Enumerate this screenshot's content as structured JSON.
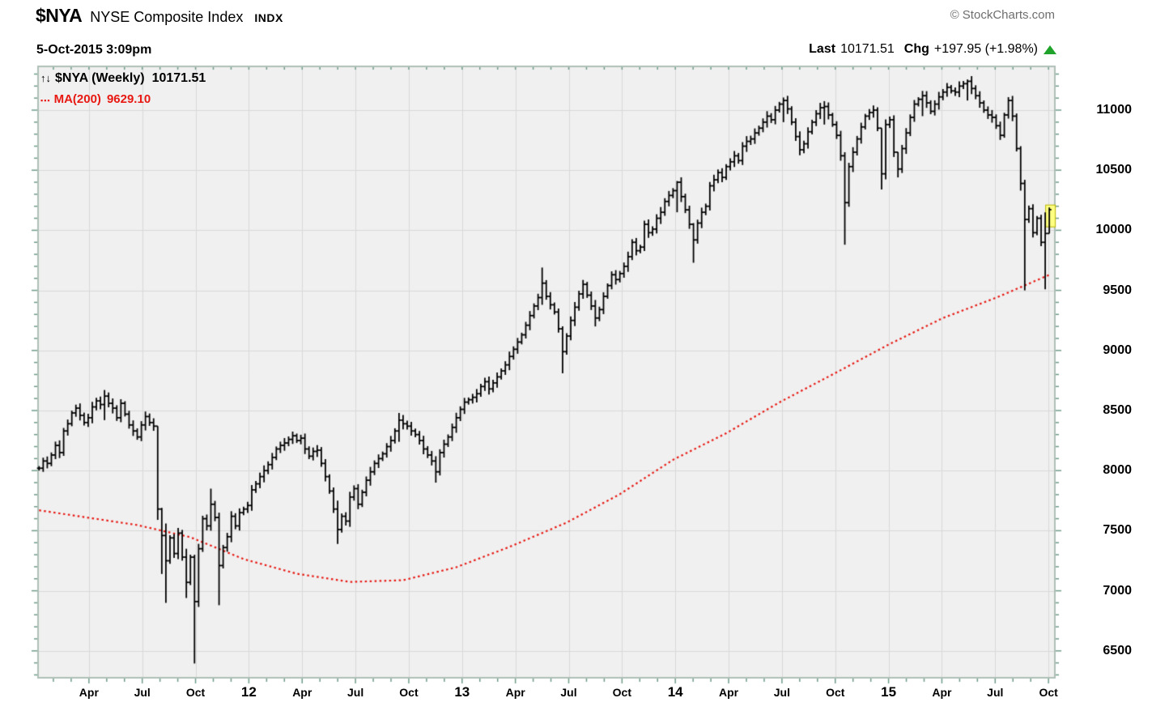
{
  "header": {
    "symbol": "$NYA",
    "name": "NYSE Composite Index",
    "exchange": "INDX",
    "datetime": "5-Oct-2015 3:09pm",
    "copyright": "© StockCharts.com",
    "last_label": "Last",
    "last_value": "10171.51",
    "chg_label": "Chg",
    "chg_value": "+197.95 (+1.98%)",
    "direction_icon": "up-triangle"
  },
  "legend": {
    "series_icon": "↑↓",
    "series_label": "$NYA (Weekly)",
    "series_value": "10171.51",
    "ma_swatch": "▪▪▪",
    "ma_label": "MA(200)",
    "ma_value": "9629.10"
  },
  "colors": {
    "bar": "#000000",
    "ma_line": "#e81812",
    "grid": "#d9d9d9",
    "plot_bg": "#f0f0f0",
    "border": "#aebfb7",
    "tick": "#6f9b88",
    "up_green": "#1fa32b",
    "marker_yellow": "#ffff82",
    "marker_edge": "#b8b400",
    "copyright_gray": "#6e6e6e"
  },
  "chart_data": {
    "type": "bar",
    "subtype": "weekly OHLC bars with 200-period moving average",
    "title": "$NYA (Weekly)",
    "symbol": "$NYA",
    "interval": "weekly",
    "start_date": "2011-01-07",
    "end_date": "2015-10-05",
    "last": 10171.51,
    "change": 197.95,
    "change_pct": 1.98,
    "ma200_last": 9629.1,
    "grid": true,
    "y_axis": {
      "side": "right",
      "min": 6280,
      "max": 11360,
      "grid_step": 500,
      "minor_tick_step": 100,
      "tick_values": [
        11000,
        10500,
        10000,
        9500,
        9000,
        8500,
        8000,
        7500,
        7000,
        6500
      ]
    },
    "x_axis": {
      "unit": "months since Jan 2011",
      "gridlines_every": "quarter",
      "tick_labels": [
        {
          "label": "Apr",
          "month": 3,
          "year": false
        },
        {
          "label": "Jul",
          "month": 6,
          "year": false
        },
        {
          "label": "Oct",
          "month": 9,
          "year": false
        },
        {
          "label": "12",
          "month": 12,
          "year": true
        },
        {
          "label": "Apr",
          "month": 15,
          "year": false
        },
        {
          "label": "Jul",
          "month": 18,
          "year": false
        },
        {
          "label": "Oct",
          "month": 21,
          "year": false
        },
        {
          "label": "13",
          "month": 24,
          "year": true
        },
        {
          "label": "Apr",
          "month": 27,
          "year": false
        },
        {
          "label": "Jul",
          "month": 30,
          "year": false
        },
        {
          "label": "Oct",
          "month": 33,
          "year": false
        },
        {
          "label": "14",
          "month": 36,
          "year": true
        },
        {
          "label": "Apr",
          "month": 39,
          "year": false
        },
        {
          "label": "Jul",
          "month": 42,
          "year": false
        },
        {
          "label": "Oct",
          "month": 45,
          "year": false
        },
        {
          "label": "15",
          "month": 48,
          "year": true
        },
        {
          "label": "Apr",
          "month": 51,
          "year": false
        },
        {
          "label": "Jul",
          "month": 54,
          "year": false
        },
        {
          "label": "Oct",
          "month": 57,
          "year": false
        }
      ]
    },
    "weekly_closes": [
      8020,
      8080,
      8060,
      8130,
      8210,
      8150,
      8330,
      8390,
      8480,
      8520,
      8460,
      8400,
      8440,
      8530,
      8580,
      8550,
      8620,
      8560,
      8520,
      8440,
      8560,
      8470,
      8380,
      8330,
      8280,
      8380,
      8450,
      8400,
      8370,
      7680,
      7460,
      7250,
      7440,
      7310,
      7480,
      7280,
      7070,
      7280,
      6910,
      7350,
      7600,
      7540,
      7720,
      7610,
      7210,
      7360,
      7450,
      7620,
      7540,
      7650,
      7680,
      7710,
      7840,
      7890,
      7950,
      8000,
      8050,
      8110,
      8180,
      8210,
      8230,
      8260,
      8290,
      8250,
      8270,
      8180,
      8120,
      8160,
      8170,
      8060,
      7950,
      7830,
      7680,
      7510,
      7620,
      7580,
      7780,
      7850,
      7720,
      7820,
      7920,
      7990,
      8060,
      8100,
      8140,
      8200,
      8250,
      8330,
      8420,
      8390,
      8370,
      8330,
      8300,
      8250,
      8180,
      8130,
      8080,
      7990,
      8150,
      8220,
      8280,
      8360,
      8440,
      8510,
      8570,
      8590,
      8610,
      8640,
      8700,
      8740,
      8680,
      8730,
      8780,
      8830,
      8880,
      8950,
      9010,
      9070,
      9130,
      9210,
      9290,
      9370,
      9440,
      9560,
      9450,
      9380,
      9320,
      9180,
      8990,
      9120,
      9250,
      9360,
      9470,
      9550,
      9460,
      9370,
      9270,
      9340,
      9450,
      9540,
      9630,
      9590,
      9640,
      9700,
      9780,
      9900,
      9830,
      9860,
      10050,
      9980,
      10010,
      10100,
      10150,
      10240,
      10290,
      10330,
      10400,
      10280,
      10170,
      10050,
      9920,
      10060,
      10150,
      10200,
      10370,
      10420,
      10480,
      10440,
      10530,
      10570,
      10620,
      10580,
      10700,
      10740,
      10760,
      10810,
      10850,
      10900,
      10950,
      10920,
      11000,
      11050,
      11080,
      11010,
      10900,
      10780,
      10670,
      10720,
      10820,
      10900,
      10970,
      11020,
      11030,
      10960,
      10880,
      10790,
      10620,
      10230,
      10530,
      10650,
      10760,
      10860,
      10950,
      10980,
      11000,
      10850,
      10470,
      10880,
      10920,
      10650,
      10510,
      10680,
      10810,
      10940,
      11050,
      11090,
      11120,
      11060,
      10990,
      11050,
      11110,
      11150,
      11190,
      11160,
      11150,
      11200,
      11220,
      11240,
      11180,
      11120,
      11060,
      11000,
      10960,
      10940,
      10870,
      10790,
      10960,
      11080,
      10950,
      10680,
      10390,
      10090,
      10180,
      9980,
      10100,
      9900,
      9973.56,
      10171.51
    ],
    "hl_overrides": {
      "16": [
        8671,
        8420
      ],
      "29": [
        8320,
        7590
      ],
      "30": [
        7690,
        7140
      ],
      "31": [
        7560,
        6900
      ],
      "36": [
        7350,
        6940
      ],
      "38": [
        7300,
        6395
      ],
      "42": [
        7850,
        7500
      ],
      "44": [
        7650,
        6880
      ],
      "73": [
        7750,
        7390
      ],
      "88": [
        8480,
        8240
      ],
      "97": [
        8120,
        7900
      ],
      "123": [
        9690,
        9380
      ],
      "128": [
        9200,
        8810
      ],
      "136": [
        9420,
        9200
      ],
      "156": [
        10410,
        10150
      ],
      "160": [
        10060,
        9730
      ],
      "182": [
        11105,
        10900
      ],
      "192": [
        11075,
        10880
      ],
      "197": [
        10650,
        9880
      ],
      "206": [
        10800,
        10340
      ],
      "210": [
        10650,
        10440
      ],
      "216": [
        11160,
        10950
      ],
      "227": [
        11255,
        11080
      ],
      "240": [
        10700,
        10330
      ],
      "241": [
        10420,
        9500
      ],
      "246": [
        10150,
        9509
      ],
      "247": [
        10190,
        9985
      ]
    },
    "ma200_anchors": [
      [
        0,
        7670
      ],
      [
        24,
        7547
      ],
      [
        37,
        7446
      ],
      [
        50,
        7264
      ],
      [
        63,
        7142
      ],
      [
        76,
        7074
      ],
      [
        89,
        7088
      ],
      [
        102,
        7196
      ],
      [
        115,
        7365
      ],
      [
        129,
        7568
      ],
      [
        142,
        7804
      ],
      [
        155,
        8090
      ],
      [
        168,
        8311
      ],
      [
        181,
        8568
      ],
      [
        195,
        8818
      ],
      [
        208,
        9054
      ],
      [
        221,
        9270
      ],
      [
        234,
        9439
      ],
      [
        247,
        9629.1
      ]
    ]
  }
}
